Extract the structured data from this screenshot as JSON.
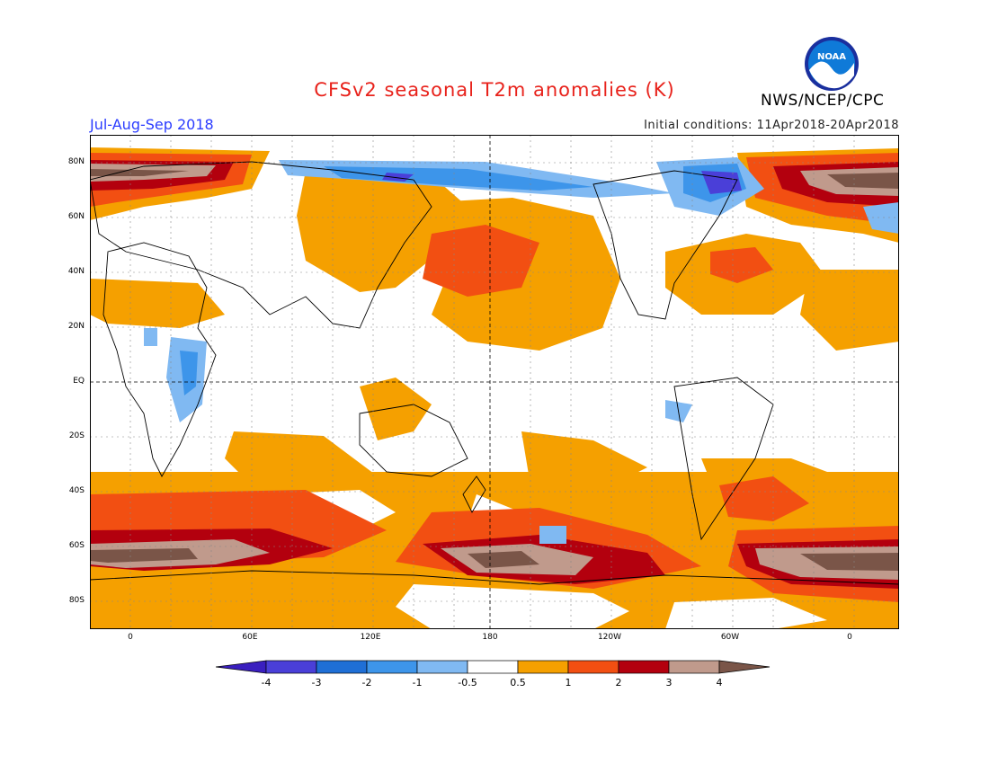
{
  "title": "CFSv2 seasonal T2m anomalies (K)",
  "agency": "NWS/NCEP/CPC",
  "logo_text": "NOAA",
  "period": "Jul-Aug-Sep 2018",
  "initial_conditions": "Initial conditions: 11Apr2018-20Apr2018",
  "lat_labels": [
    "80N",
    "60N",
    "40N",
    "20N",
    "EQ",
    "20S",
    "40S",
    "60S",
    "80S"
  ],
  "lon_labels": [
    "0",
    "60E",
    "120E",
    "180",
    "120W",
    "60W",
    "0"
  ],
  "colorbar": {
    "levels": [
      "-4",
      "-3",
      "-2",
      "-1",
      "-0.5",
      "0.5",
      "1",
      "2",
      "3",
      "4"
    ],
    "colors": [
      "#3a1fbf",
      "#4a3fd8",
      "#1f6fd6",
      "#3d95ea",
      "#80b9f2",
      "#ffffff",
      "#f5a000",
      "#f24f12",
      "#b3000e",
      "#c09a8c",
      "#7a5548"
    ]
  },
  "colors": {
    "title": "#e8221b",
    "period": "#2b3cff",
    "warm1": "#f5a000",
    "warm2": "#f24f12",
    "warm3": "#b3000e",
    "warm4": "#c09a8c",
    "warm5": "#7a5548",
    "cool1": "#80b9f2",
    "cool2": "#3d95ea",
    "cool3": "#1f6fd6",
    "cool4": "#4a3fd8"
  }
}
